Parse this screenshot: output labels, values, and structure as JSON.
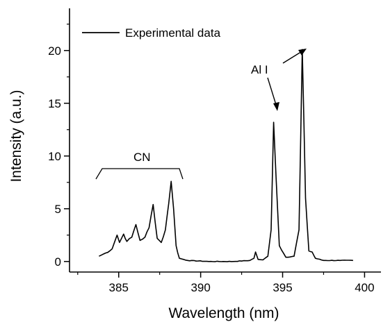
{
  "chart_data": {
    "type": "line",
    "xlabel": "Wavelength (nm)",
    "ylabel": "Intensity (a.u.)",
    "xlim": [
      382,
      401
    ],
    "ylim": [
      -1,
      24
    ],
    "x_ticks": [
      385,
      390,
      395,
      400
    ],
    "y_ticks": [
      0,
      5,
      10,
      15,
      20
    ],
    "grid": false,
    "legend_position": "top-left",
    "series": [
      {
        "name": "Experimental data",
        "color": "#000000",
        "points": [
          [
            383.8,
            0.5
          ],
          [
            384.2,
            0.8
          ],
          [
            384.6,
            1.2
          ],
          [
            384.9,
            2.5
          ],
          [
            385.05,
            1.8
          ],
          [
            385.3,
            2.6
          ],
          [
            385.5,
            1.9
          ],
          [
            385.8,
            2.3
          ],
          [
            386.05,
            3.5
          ],
          [
            386.3,
            2.0
          ],
          [
            386.6,
            2.3
          ],
          [
            386.85,
            3.2
          ],
          [
            387.1,
            5.4
          ],
          [
            387.35,
            2.2
          ],
          [
            387.6,
            1.8
          ],
          [
            387.85,
            3.0
          ],
          [
            388.05,
            5.5
          ],
          [
            388.2,
            7.6
          ],
          [
            388.35,
            5.0
          ],
          [
            388.5,
            1.5
          ],
          [
            388.7,
            0.3
          ],
          [
            389.2,
            0.1
          ],
          [
            390.5,
            0.0
          ],
          [
            392.0,
            0.0
          ],
          [
            393.0,
            0.1
          ],
          [
            393.25,
            0.3
          ],
          [
            393.35,
            0.9
          ],
          [
            393.5,
            0.2
          ],
          [
            393.8,
            0.15
          ],
          [
            394.1,
            0.5
          ],
          [
            394.3,
            3.0
          ],
          [
            394.45,
            13.2
          ],
          [
            394.6,
            8.0
          ],
          [
            394.8,
            1.5
          ],
          [
            395.2,
            0.4
          ],
          [
            395.7,
            0.5
          ],
          [
            396.0,
            3.0
          ],
          [
            396.2,
            20.1
          ],
          [
            396.4,
            6.0
          ],
          [
            396.6,
            1.0
          ],
          [
            396.8,
            0.9
          ],
          [
            397.0,
            0.3
          ],
          [
            397.5,
            0.1
          ],
          [
            398.5,
            0.1
          ],
          [
            399.3,
            0.1
          ]
        ]
      }
    ],
    "annotations": [
      {
        "text": "CN",
        "anchor": [
          386.0,
          8.3
        ]
      },
      {
        "text": "Al I",
        "anchor": [
          393.8,
          17.9
        ]
      }
    ]
  }
}
